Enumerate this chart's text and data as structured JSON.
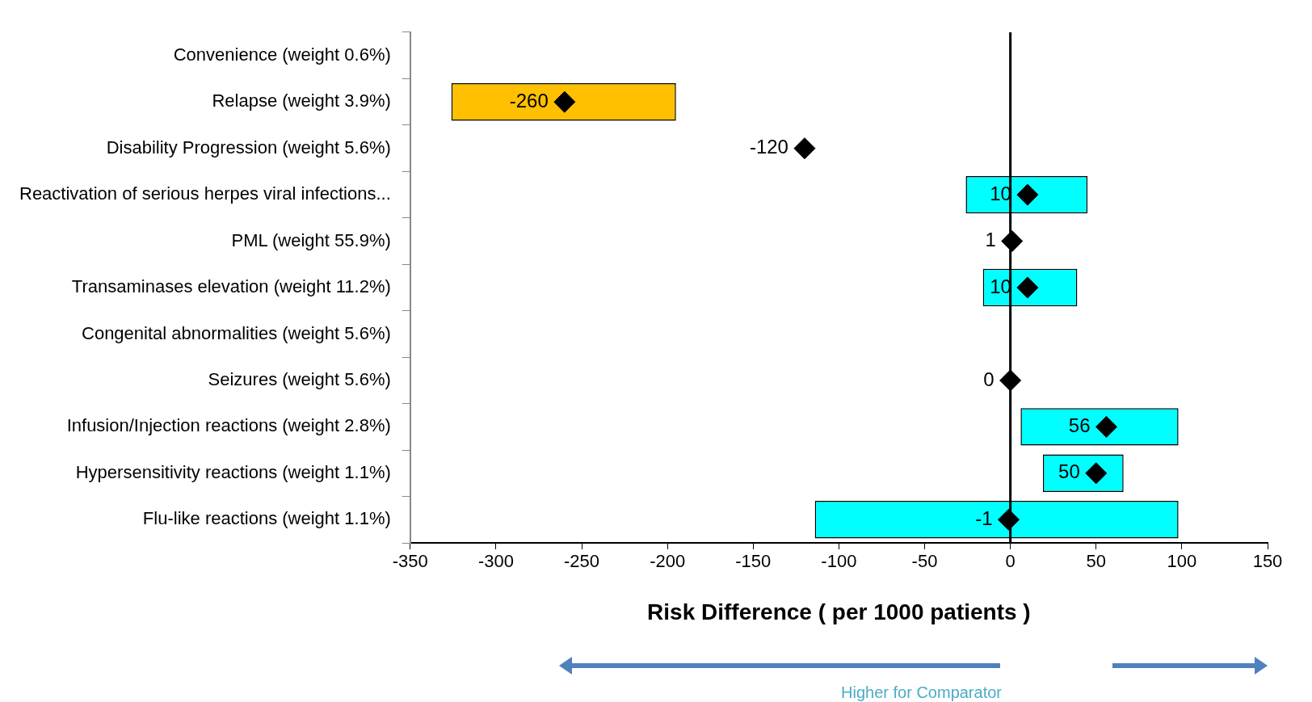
{
  "chart_data": {
    "type": "bar",
    "orientation": "horizontal",
    "xlabel": "Risk Difference ( per 1000 patients )",
    "categories": [
      "Convenience (weight 0.6%)",
      "Relapse (weight 3.9%)",
      "Disability Progression (weight 5.6%)",
      "Reactivation of serious herpes viral infections...",
      "PML (weight 55.9%)",
      "Transaminases elevation (weight 11.2%)",
      "Congenital abnormalities (weight 5.6%)",
      "Seizures (weight 5.6%)",
      "Infusion/Injection reactions (weight 2.8%)",
      "Hypersensitivity reactions (weight 1.1%)",
      "Flu-like reactions (weight 1.1%)"
    ],
    "series": [
      {
        "colors": [
          "#00ffff",
          "#ffc000",
          "#00ffff",
          "#00ffff",
          "#00ffff",
          "#00ffff",
          "#00ffff",
          "#00ffff",
          "#00ffff",
          "#00ffff",
          "#00ffff"
        ],
        "base": [
          null,
          -326,
          null,
          -26,
          null,
          -16,
          null,
          null,
          6,
          19,
          -114
        ],
        "values": [
          null,
          131,
          null,
          71,
          null,
          55,
          null,
          null,
          92,
          47,
          212
        ]
      },
      {
        "type": "scatter",
        "color": "#000000",
        "marker": "diamond",
        "x": [
          "Convenience (weight 0.6%)",
          "Relapse (weight 3.9%)",
          "Disability Progression (weight 5.6%)",
          "Reactivation of serious herpes viral infections...",
          "PML (weight 55.9%)",
          "Transaminases elevation (weight 11.2%)",
          "Congenital abnormalities (weight 5.6%)",
          "Seizures (weight 5.6%)",
          "Infusion/Injection reactions (weight 2.8%)",
          "Hypersensitivity reactions (weight 1.1%)",
          "Flu-like reactions (weight 1.1%)"
        ],
        "values": [
          null,
          -260,
          -120,
          10,
          1,
          10,
          null,
          0,
          56,
          50,
          -1
        ],
        "value_labels": [
          null,
          "-260",
          "-120",
          "10",
          "1",
          "10",
          null,
          "0",
          "56",
          "50",
          "-1"
        ]
      }
    ],
    "xlim": [
      -350,
      150
    ],
    "xticks": [
      -350,
      -300,
      -250,
      -200,
      -150,
      -100,
      -50,
      0,
      50,
      100,
      150
    ],
    "ref_lines": [
      {
        "axis": "x",
        "value": 0,
        "color": "#000000"
      }
    ],
    "grid": false,
    "legend": false,
    "annotations": [
      "Higher for Comparator"
    ]
  }
}
